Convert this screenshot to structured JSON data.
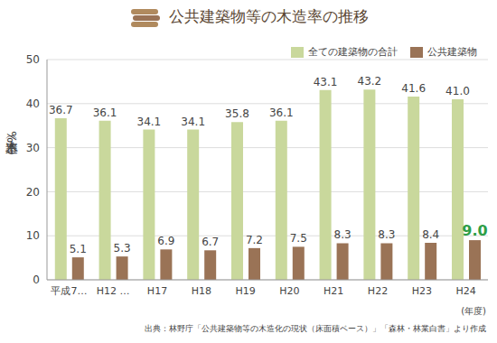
{
  "chart_data": {
    "type": "bar",
    "title": "公共建築物等の木造率の推移",
    "ylabel": "木造率（%）",
    "xlabel": "(年度)",
    "caption": "出典：林野庁「公共建築物等の木造化の現状（床面積ベース）」「森林・林業白書」より作成",
    "categories": [
      "平成7…",
      "H12 …",
      "H17",
      "H18",
      "H19",
      "H20",
      "H21",
      "H22",
      "H23",
      "H24"
    ],
    "series": [
      {
        "name": "全ての建築物の合計",
        "color": "#c9d89c",
        "values": [
          36.7,
          36.1,
          34.1,
          34.1,
          35.8,
          36.1,
          43.1,
          43.2,
          41.6,
          41.0
        ],
        "value_labels": [
          "36.7",
          "36.1",
          "34.1",
          "34.1",
          "35.8",
          "36.1",
          "43.1",
          "43.2",
          "41.6",
          "41.0"
        ]
      },
      {
        "name": "公共建築物",
        "color": "#9a7356",
        "values": [
          5.1,
          5.3,
          6.9,
          6.7,
          7.2,
          7.5,
          8.3,
          8.3,
          8.4,
          9.0
        ],
        "value_labels": [
          "5.1",
          "5.3",
          "6.9",
          "6.7",
          "7.2",
          "7.5",
          "8.3",
          "8.3",
          "8.4",
          "9.0"
        ]
      }
    ],
    "ylim": [
      0,
      50
    ],
    "yticks": [
      0,
      10,
      20,
      30,
      40,
      50
    ],
    "grid": true,
    "legend": "upper right",
    "data_labels": true
  }
}
